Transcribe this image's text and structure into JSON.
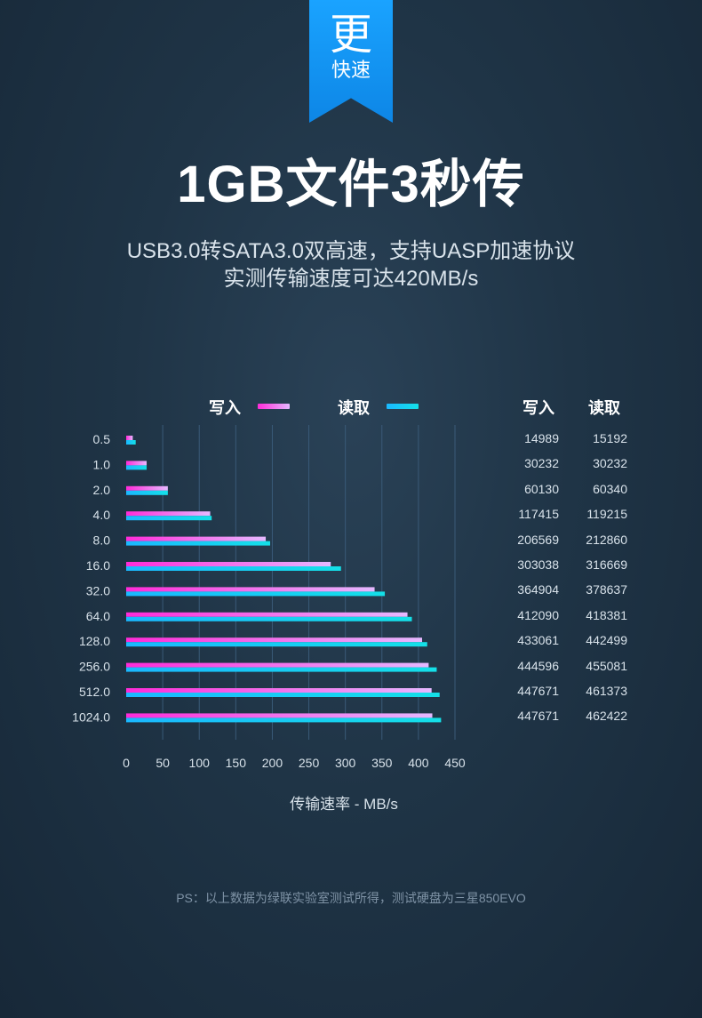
{
  "ribbon": {
    "big": "更",
    "small": "快速"
  },
  "title": "1GB文件3秒传",
  "subtitle1": "USB3.0转SATA3.0双高速，支持UASP加速协议",
  "subtitle2": "实测传输速度可达420MB/s",
  "footnote": "PS：以上数据为绿联实验室测试所得，测试硬盘为三星850EVO",
  "table": {
    "headers": [
      "写入",
      "读取"
    ],
    "write": [
      "14989",
      "30232",
      "60130",
      "117415",
      "206569",
      "303038",
      "364904",
      "412090",
      "433061",
      "444596",
      "447671",
      "447671"
    ],
    "read": [
      "15192",
      "30232",
      "60340",
      "119215",
      "212860",
      "316669",
      "378637",
      "418381",
      "442499",
      "455081",
      "461373",
      "462422"
    ]
  },
  "colors": {
    "write_start": "#ff2bd8",
    "write_end": "#e6b8ff",
    "read_start": "#1ab8ff",
    "read_end": "#14e0e8"
  },
  "chart_data": {
    "type": "bar",
    "orientation": "horizontal",
    "categories": [
      "0.5",
      "1.0",
      "2.0",
      "4.0",
      "8.0",
      "16.0",
      "32.0",
      "64.0",
      "128.0",
      "256.0",
      "512.0",
      "1024.0"
    ],
    "series": [
      {
        "name": "写入",
        "values": [
          9,
          28,
          57,
          115,
          191,
          280,
          340,
          385,
          405,
          414,
          418,
          419
        ]
      },
      {
        "name": "读取",
        "values": [
          13,
          28,
          57,
          117,
          197,
          294,
          354,
          391,
          412,
          425,
          429,
          431
        ]
      }
    ],
    "xlabel": "传输速率 - MB/s",
    "xticks": [
      0,
      50,
      100,
      150,
      200,
      250,
      300,
      350,
      400,
      450
    ],
    "xlim": [
      0,
      450
    ],
    "legend": "top",
    "grid": true
  }
}
